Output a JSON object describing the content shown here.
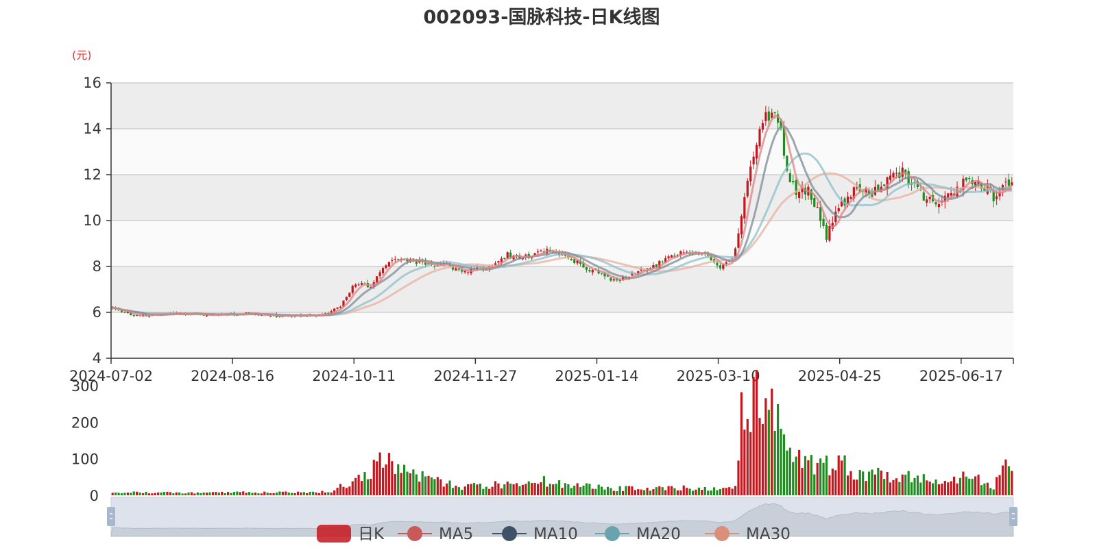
{
  "chart_data": {
    "type": "candlestick",
    "title": "002093-国脉科技-日K线图",
    "y_unit": "(元)",
    "price_axis": {
      "ylim": [
        4,
        16
      ],
      "ticks": [
        "16",
        "14",
        "12",
        "10",
        "8",
        "6",
        "4"
      ]
    },
    "volume_axis": {
      "ylim": [
        0,
        300
      ],
      "ticks": [
        "300",
        "200",
        "100",
        "0"
      ]
    },
    "x_tick_labels": [
      "2024-07-02",
      "2024-08-16",
      "2024-10-11",
      "2024-11-27",
      "2025-01-14",
      "2025-03-10",
      "2025-04-25",
      "2025-06-17"
    ],
    "legend": [
      "日K",
      "MA5",
      "MA10",
      "MA20",
      "MA30"
    ],
    "colors": {
      "up": "#c4161c",
      "down": "#1e8c1e",
      "MA5": "#d98686",
      "MA10": "#7c8a96",
      "MA20": "#8fbfc9",
      "MA30": "#e8b0a0",
      "band_dark": "#ededed",
      "band_light": "#fafafa",
      "slider_fill": "#dde2ec",
      "slider_handle": "#a7b7cc"
    },
    "price_path_keypoints": [
      [
        0,
        6.2
      ],
      [
        8,
        5.85
      ],
      [
        20,
        5.95
      ],
      [
        32,
        5.9
      ],
      [
        44,
        5.95
      ],
      [
        54,
        5.85
      ],
      [
        62,
        5.85
      ],
      [
        70,
        5.9
      ],
      [
        75,
        6.3
      ],
      [
        80,
        7.3
      ],
      [
        85,
        7.1
      ],
      [
        90,
        8.0
      ],
      [
        95,
        8.4
      ],
      [
        100,
        8.2
      ],
      [
        105,
        8.1
      ],
      [
        110,
        8.1
      ],
      [
        115,
        7.8
      ],
      [
        120,
        7.9
      ],
      [
        125,
        8.0
      ],
      [
        130,
        8.5
      ],
      [
        135,
        8.4
      ],
      [
        140,
        8.6
      ],
      [
        145,
        8.7
      ],
      [
        150,
        8.4
      ],
      [
        155,
        8.0
      ],
      [
        160,
        7.7
      ],
      [
        164,
        7.4
      ],
      [
        168,
        7.5
      ],
      [
        172,
        7.7
      ],
      [
        177,
        7.9
      ],
      [
        182,
        8.3
      ],
      [
        186,
        8.6
      ],
      [
        190,
        8.55
      ],
      [
        196,
        8.5
      ],
      [
        200,
        8.0
      ],
      [
        204,
        8.3
      ],
      [
        206,
        9.5
      ],
      [
        209,
        11.8
      ],
      [
        212,
        13.5
      ],
      [
        215,
        14.5
      ],
      [
        218,
        14.8
      ],
      [
        220,
        13.8
      ],
      [
        223,
        11.6
      ],
      [
        226,
        11.2
      ],
      [
        229,
        11.3
      ],
      [
        232,
        10.5
      ],
      [
        235,
        9.2
      ],
      [
        238,
        10.6
      ],
      [
        241,
        10.7
      ],
      [
        245,
        11.4
      ],
      [
        249,
        11.1
      ],
      [
        252,
        11.3
      ],
      [
        256,
        11.9
      ],
      [
        260,
        12.1
      ],
      [
        264,
        11.4
      ],
      [
        268,
        11.0
      ],
      [
        272,
        10.85
      ],
      [
        276,
        11.3
      ],
      [
        281,
        11.8
      ],
      [
        285,
        11.6
      ],
      [
        288,
        11.3
      ],
      [
        290,
        11.0
      ],
      [
        293,
        11.5
      ],
      [
        296,
        11.8
      ]
    ],
    "volume_keypoints": [
      [
        0,
        8
      ],
      [
        60,
        8
      ],
      [
        68,
        8
      ],
      [
        72,
        12
      ],
      [
        78,
        35
      ],
      [
        84,
        55
      ],
      [
        88,
        95
      ],
      [
        92,
        80
      ],
      [
        96,
        70
      ],
      [
        100,
        55
      ],
      [
        106,
        40
      ],
      [
        115,
        25
      ],
      [
        130,
        30
      ],
      [
        140,
        40
      ],
      [
        150,
        30
      ],
      [
        165,
        18
      ],
      [
        190,
        20
      ],
      [
        200,
        15
      ],
      [
        205,
        30
      ],
      [
        207,
        230
      ],
      [
        213,
        250
      ],
      [
        218,
        260
      ],
      [
        220,
        150
      ],
      [
        226,
        90
      ],
      [
        232,
        75
      ],
      [
        240,
        90
      ],
      [
        246,
        60
      ],
      [
        252,
        60
      ],
      [
        256,
        45
      ],
      [
        262,
        60
      ],
      [
        265,
        55
      ],
      [
        270,
        40
      ],
      [
        276,
        30
      ],
      [
        281,
        70
      ],
      [
        285,
        50
      ],
      [
        290,
        25
      ],
      [
        293,
        60
      ],
      [
        296,
        95
      ]
    ]
  }
}
